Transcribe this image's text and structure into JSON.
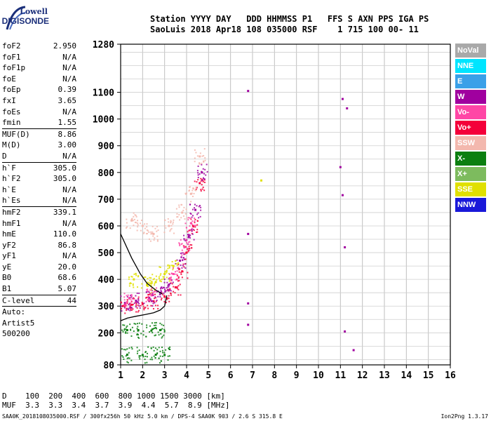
{
  "brand": {
    "line1": "Lowell",
    "line2": "DIGISONDE"
  },
  "header": {
    "line1": "Station YYYY DAY   DDD HHMMSS P1   FFS S AXN PPS IGA PS",
    "line2": "SaoLuis 2018 Apr18 108 035000 RSF    1 715 100 00- 11"
  },
  "params": [
    {
      "k": "foF2",
      "v": "2.950"
    },
    {
      "k": "foF1",
      "v": "N/A"
    },
    {
      "k": "foF1p",
      "v": "N/A"
    },
    {
      "k": "foE",
      "v": "N/A"
    },
    {
      "k": "foEp",
      "v": "0.39"
    },
    {
      "k": "fxI",
      "v": "3.65"
    },
    {
      "k": "foEs",
      "v": "N/A"
    },
    {
      "k": "fmin",
      "v": "1.55"
    },
    {
      "sep": true
    },
    {
      "k": "MUF(D)",
      "v": "8.86"
    },
    {
      "k": "M(D)",
      "v": "3.00"
    },
    {
      "k": "D",
      "v": "N/A"
    },
    {
      "sep": true
    },
    {
      "k": "h`F",
      "v": "305.0"
    },
    {
      "k": "h`F2",
      "v": "305.0"
    },
    {
      "k": "h`E",
      "v": "N/A"
    },
    {
      "k": "h`Es",
      "v": "N/A"
    },
    {
      "sep": true
    },
    {
      "k": "hmF2",
      "v": "339.1"
    },
    {
      "k": "hmF1",
      "v": "N/A"
    },
    {
      "k": "hmE",
      "v": "110.0"
    },
    {
      "k": "yF2",
      "v": "86.8"
    },
    {
      "k": "yF1",
      "v": "N/A"
    },
    {
      "k": "yE",
      "v": "20.0"
    },
    {
      "k": "B0",
      "v": "68.6"
    },
    {
      "k": "B1",
      "v": "5.07"
    },
    {
      "sep": true
    },
    {
      "k": "C-level",
      "v": "44"
    },
    {
      "sep": true
    }
  ],
  "auto": [
    "Auto:",
    "Artist5",
    "500200"
  ],
  "legend": [
    {
      "label": "NoVal",
      "color": "#a9a9a9"
    },
    {
      "label": "NNE",
      "color": "#00e5ff"
    },
    {
      "label": "E",
      "color": "#3aa0e8"
    },
    {
      "label": "W",
      "color": "#a0009f"
    },
    {
      "label": "Vo-",
      "color": "#ff46a6"
    },
    {
      "label": "Vo+",
      "color": "#f4003a"
    },
    {
      "label": "SSW",
      "color": "#f3b8ae"
    },
    {
      "label": "X-",
      "color": "#0b7f10"
    },
    {
      "label": "X+",
      "color": "#7dbb5e"
    },
    {
      "label": "SSE",
      "color": "#e0e000"
    },
    {
      "label": "NNW",
      "color": "#1a19d9"
    }
  ],
  "axes": {
    "x_ticks": [
      "1",
      "2",
      "3",
      "4",
      "5",
      "6",
      "7",
      "8",
      "9",
      "10",
      "11",
      "12",
      "13",
      "14",
      "15",
      "16"
    ],
    "y_ticks": [
      "1280",
      "1100",
      "1000",
      "900",
      "800",
      "700",
      "600",
      "500",
      "400",
      "300",
      "200",
      "80"
    ]
  },
  "chart_data": {
    "type": "scatter",
    "title": "",
    "xlabel": "",
    "ylabel": "",
    "xlim": [
      1,
      16
    ],
    "ylim": [
      80,
      1280
    ],
    "series": [
      {
        "color": "#f4003a",
        "points": [
          [
            1.1,
            300
          ],
          [
            1.5,
            305
          ],
          [
            2.0,
            308
          ],
          [
            2.5,
            318
          ],
          [
            3.0,
            335
          ],
          [
            3.5,
            370
          ],
          [
            3.8,
            430
          ],
          [
            4.0,
            500
          ],
          [
            4.3,
            600
          ],
          [
            4.6,
            760
          ]
        ]
      },
      {
        "color": "#a0009f",
        "points": [
          [
            1.2,
            310
          ],
          [
            1.7,
            320
          ],
          [
            2.3,
            330
          ],
          [
            2.8,
            350
          ],
          [
            3.2,
            380
          ],
          [
            3.7,
            470
          ],
          [
            4.1,
            560
          ],
          [
            4.4,
            660
          ],
          [
            4.7,
            800
          ],
          [
            6.8,
            1105
          ],
          [
            11.1,
            1075
          ],
          [
            11.3,
            1040
          ],
          [
            11.0,
            820
          ],
          [
            11.1,
            715
          ],
          [
            11.2,
            520
          ],
          [
            6.8,
            570
          ],
          [
            6.8,
            310
          ],
          [
            6.8,
            230
          ],
          [
            11.2,
            205
          ],
          [
            11.6,
            135
          ]
        ]
      },
      {
        "color": "#e0e000",
        "points": [
          [
            1.6,
            400
          ],
          [
            2.2,
            380
          ],
          [
            2.6,
            390
          ],
          [
            3.0,
            420
          ],
          [
            3.4,
            450
          ],
          [
            7.4,
            770
          ]
        ]
      },
      {
        "color": "#f3b8ae",
        "points": [
          [
            1.5,
            620
          ],
          [
            2.0,
            600
          ],
          [
            2.5,
            570
          ],
          [
            3.2,
            600
          ],
          [
            3.8,
            650
          ],
          [
            4.2,
            720
          ],
          [
            4.6,
            860
          ]
        ]
      },
      {
        "color": "#0b7f10",
        "points": [
          [
            1.3,
            210
          ],
          [
            1.8,
            210
          ],
          [
            2.4,
            208
          ],
          [
            2.8,
            210
          ],
          [
            1.3,
            118
          ],
          [
            2.0,
            117
          ],
          [
            2.6,
            118
          ],
          [
            3.0,
            117
          ]
        ]
      },
      {
        "color": "#ff46a6",
        "points": [
          [
            1.4,
            330
          ],
          [
            2.4,
            340
          ],
          [
            3.4,
            420
          ],
          [
            3.9,
            520
          ],
          [
            4.2,
            610
          ]
        ]
      }
    ],
    "curves": [
      {
        "name": "profile",
        "color": "#000000",
        "x": [
          1.0,
          1.3,
          1.7,
          2.1,
          2.5,
          2.8,
          3.0,
          3.1
        ],
        "y": [
          245,
          255,
          262,
          268,
          275,
          285,
          300,
          340
        ]
      },
      {
        "name": "trace",
        "color": "#000000",
        "x": [
          1.0,
          1.5,
          1.9,
          2.2,
          2.6,
          2.9
        ],
        "y": [
          570,
          480,
          420,
          385,
          360,
          345
        ]
      }
    ]
  },
  "bottom": {
    "row1": "D    100  200  400  600  800 1000 1500 3000 [km]",
    "row2": "MUF  3.3  3.3  3.4  3.7  3.9  4.4  5.7  8.9 [MHz]",
    "footer": "SAA0K_2018108035000.RSF / 300fx256h 50 kHz 5.0 km / DPS-4 SAA0K 903 / 2.6 S 315.8 E",
    "footer_right": "Ion2Png 1.3.17"
  }
}
